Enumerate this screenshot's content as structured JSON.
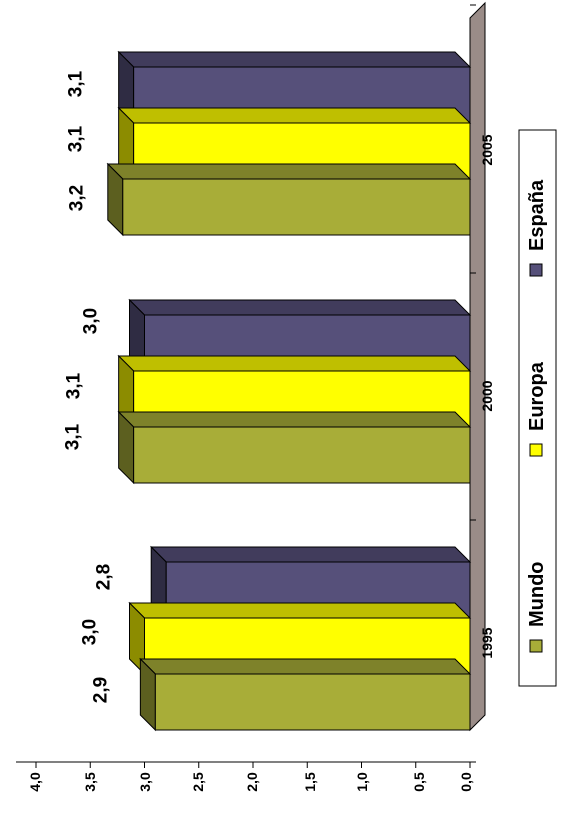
{
  "chart_data": {
    "type": "bar",
    "categories": [
      "1995",
      "2000",
      "2005"
    ],
    "series": [
      {
        "name": "Mundo",
        "values": [
          2.9,
          3.1,
          3.2
        ],
        "labels": [
          "2,9",
          "3,1",
          "3,2"
        ],
        "color": "#a8ad38"
      },
      {
        "name": "Europa",
        "values": [
          3.0,
          3.1,
          3.1
        ],
        "labels": [
          "3,0",
          "3,1",
          "3,1"
        ],
        "color": "#ffff00"
      },
      {
        "name": "España",
        "values": [
          2.8,
          3.0,
          3.1
        ],
        "labels": [
          "2,8",
          "3,0",
          "3,1"
        ],
        "color": "#56507a"
      }
    ],
    "value_ticks": [
      "0,0",
      "0,5",
      "1,0",
      "1,5",
      "2,0",
      "2,5",
      "3,0",
      "3,5",
      "4,0"
    ],
    "ylim": [
      0,
      4
    ],
    "orientation": "rotated 90° clockwise (bars grow upward from the right-hand baseline)",
    "style": "3D bars",
    "floor_color": "#9a8c88",
    "legend": "right side, rotated",
    "grid": false
  }
}
